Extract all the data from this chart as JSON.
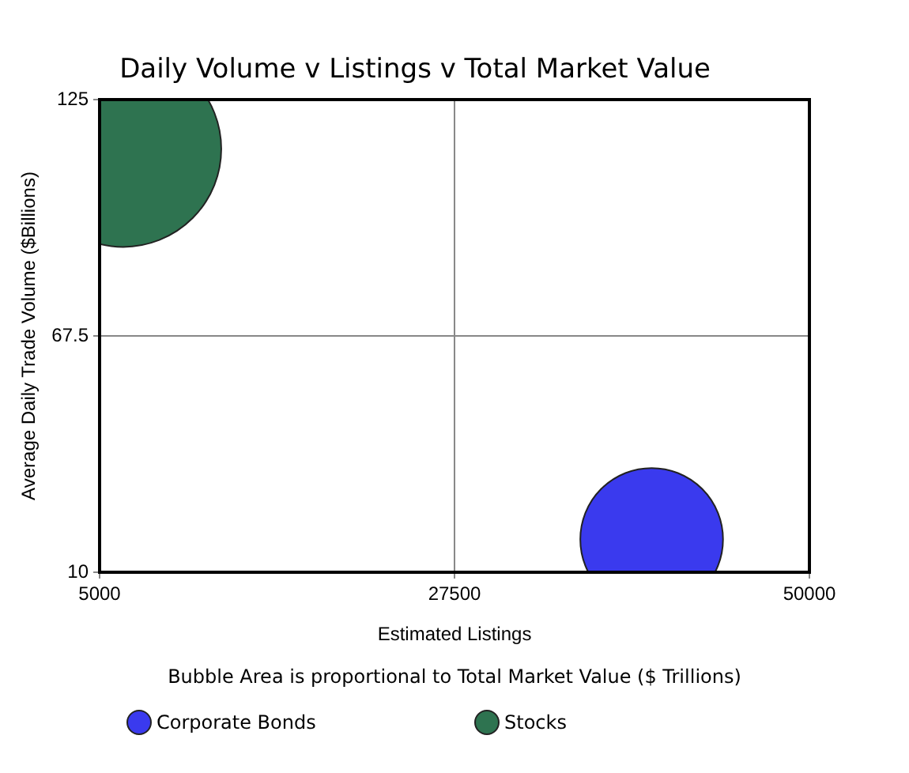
{
  "chart_data": {
    "type": "bubble",
    "title": "Daily Volume v Listings v Total Market Value",
    "xlabel": "Estimated Listings",
    "ylabel": "Average Daily Trade Volume ($Billions)",
    "annotations": [
      "Bubble Area is proportional to Total Market Value ($ Trillions)"
    ],
    "xlim": [
      5000,
      50000
    ],
    "xticks": [
      5000,
      27500,
      50000
    ],
    "ylim": [
      10,
      125
    ],
    "yticks": [
      10,
      67.5,
      125
    ],
    "grid": true,
    "legend": "bottom",
    "series": [
      {
        "name": "Corporate Bonds",
        "color": "#3a3aee",
        "x": [
          40000
        ],
        "values": [
          18
        ],
        "sizes": [
          0.53
        ]
      },
      {
        "name": "Stocks",
        "color": "#2e7350",
        "x": [
          6500
        ],
        "values": [
          113
        ],
        "sizes": [
          1
        ]
      }
    ]
  }
}
